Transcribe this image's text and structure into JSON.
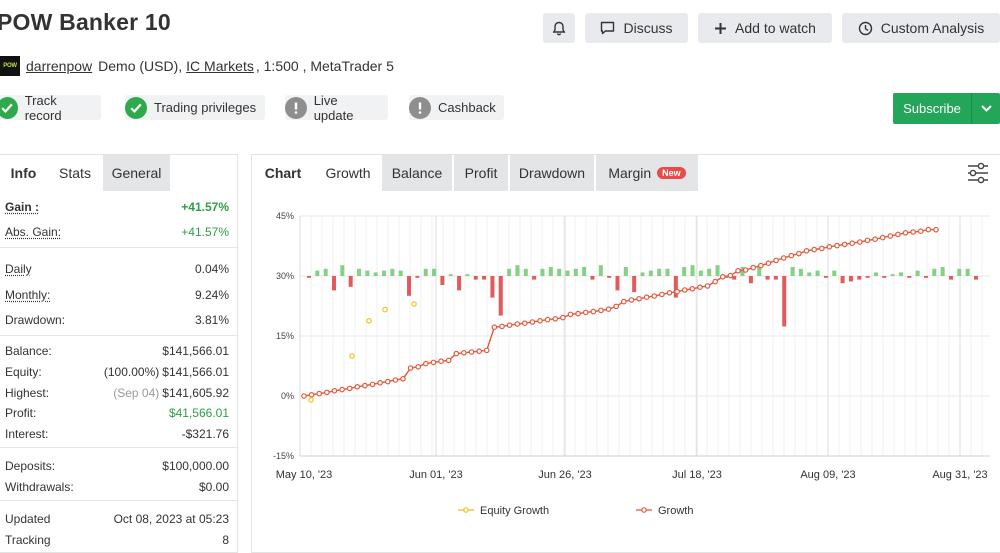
{
  "header": {
    "title": "POW Banker 10",
    "buttons": {
      "discuss": "Discuss",
      "watch": "Add to watch",
      "analysis": "Custom Analysis"
    }
  },
  "account": {
    "logo_text": "POW",
    "user": "darrenpow",
    "type": "Demo (USD),",
    "broker": "IC Markets",
    "leverage": ", 1:500 , MetaTrader 5"
  },
  "badges": [
    {
      "label": "Track record",
      "status": "ok"
    },
    {
      "label": "Trading privileges",
      "status": "ok"
    },
    {
      "label": "Live update",
      "status": "na"
    },
    {
      "label": "Cashback",
      "status": "na"
    }
  ],
  "subscribe": {
    "label": "Subscribe"
  },
  "left_tabs": [
    "Info",
    "Stats",
    "General"
  ],
  "stats": {
    "gain": {
      "label": "Gain :",
      "value": "+41.57%"
    },
    "abs_gain": {
      "label": "Abs. Gain:",
      "value": "+41.57%"
    },
    "daily": {
      "label": "Daily",
      "value": "0.04%"
    },
    "monthly": {
      "label": "Monthly:",
      "value": "9.24%"
    },
    "drawdown": {
      "label": "Drawdown:",
      "value": "3.81%"
    },
    "balance": {
      "label": "Balance:",
      "value": "$141,566.01"
    },
    "equity": {
      "label": "Equity:",
      "note": "(100.00%)",
      "value": "$141,566.01"
    },
    "highest": {
      "label": "Highest:",
      "note": "(Sep 04)",
      "value": "$141,605.92"
    },
    "profit": {
      "label": "Profit:",
      "value": "$41,566.01"
    },
    "interest": {
      "label": "Interest:",
      "value": "-$321.76"
    },
    "deposits": {
      "label": "Deposits:",
      "value": "$100,000.00"
    },
    "withdrawals": {
      "label": "Withdrawals:",
      "value": "$0.00"
    },
    "updated": {
      "label": "Updated",
      "value": "Oct 08, 2023 at 05:23"
    },
    "tracking": {
      "label": "Tracking",
      "value": "8"
    }
  },
  "chart_tabs": {
    "lead": "Chart",
    "items": [
      "Growth",
      "Balance",
      "Profit",
      "Drawdown",
      "Margin"
    ],
    "new_badge": "New"
  },
  "icons": {
    "bell": "bell-icon",
    "discuss": "chat-icon",
    "watch": "plus-icon",
    "analysis": "clock-icon",
    "settings": "sliders-icon",
    "check": "check-icon",
    "info": "exclamation-icon"
  },
  "colors": {
    "green": "#2eaa4c",
    "bar_pos": "#86cf86",
    "bar_neg": "#e35a5a",
    "growth": "#e15b41",
    "equity": "#f0c419"
  },
  "chart_data": {
    "type": "line",
    "y_ticks": [
      "45%",
      "30%",
      "15%",
      "0%",
      "-15%"
    ],
    "ylim": [
      -15,
      45
    ],
    "x_ticks": [
      "May 10, '23",
      "Jun 01, '23",
      "Jun 26, '23",
      "Jul 18, '23",
      "Aug 09, '23",
      "Aug 31, '23"
    ],
    "legend": [
      "Equity Growth",
      "Growth"
    ],
    "growth": [
      0,
      0.3,
      0.6,
      0.9,
      1.3,
      1.6,
      1.9,
      2.3,
      2.6,
      2.9,
      3.3,
      3.6,
      4.0,
      4.3,
      7.0,
      7.3,
      8.1,
      8.4,
      8.7,
      8.9,
      10.6,
      10.8,
      11.0,
      11.2,
      11.4,
      17.2,
      17.4,
      17.7,
      18.0,
      18.2,
      18.5,
      18.8,
      19.1,
      19.3,
      19.6,
      20.4,
      20.6,
      20.9,
      21.1,
      21.4,
      21.7,
      22.4,
      23.6,
      24.0,
      24.3,
      24.7,
      25.0,
      25.4,
      25.8,
      26.1,
      26.5,
      26.8,
      27.2,
      27.5,
      28.6,
      29.8,
      30.1,
      31.3,
      31.5,
      32.1,
      32.6,
      33.2,
      33.9,
      34.5,
      35.1,
      35.6,
      36.3,
      36.6,
      36.9,
      37.3,
      37.6,
      37.9,
      38.2,
      38.5,
      38.9,
      39.2,
      39.6,
      40.0,
      40.4,
      40.8,
      41.0,
      41.2,
      41.6,
      41.57
    ],
    "equity_dips": [
      [
        7,
        -1.0
      ],
      [
        48,
        10.0
      ],
      [
        65,
        18.8
      ],
      [
        81,
        21.6
      ],
      [
        110,
        23.0
      ]
    ],
    "bars": [
      -1,
      3,
      4,
      -8,
      6,
      -6,
      4,
      3,
      2,
      3,
      4,
      3,
      -11,
      -1,
      4,
      4,
      -5,
      1,
      -8,
      1,
      -2,
      -2,
      -12,
      -22,
      4,
      6,
      4,
      -2,
      4,
      5,
      4,
      3,
      4,
      5,
      -2,
      6,
      -1,
      -8,
      5,
      -9,
      2,
      3,
      4,
      4,
      -12,
      5,
      6,
      3,
      4,
      6,
      -1,
      -2,
      5,
      -4,
      5,
      -2,
      -2,
      -28,
      5,
      4,
      2,
      3,
      -1,
      3,
      -4,
      -3,
      -2,
      -1,
      2,
      -1,
      1,
      2,
      -1,
      3,
      -1,
      4,
      5,
      -2,
      4,
      4,
      -2
    ]
  }
}
